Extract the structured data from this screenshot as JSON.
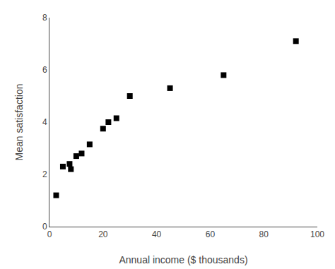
{
  "chart_data": {
    "type": "scatter",
    "x": [
      2.5,
      5,
      7.5,
      8,
      10,
      12,
      15,
      20,
      22,
      25,
      30,
      45,
      65,
      92
    ],
    "values": [
      1.2,
      2.3,
      2.4,
      2.2,
      2.7,
      2.8,
      3.15,
      3.75,
      4.0,
      4.15,
      5.0,
      5.3,
      5.8,
      7.1
    ],
    "xlabel": "Annual income ($ thousands)",
    "ylabel": "Mean satisfaction",
    "xlim": [
      0,
      100
    ],
    "ylim": [
      0,
      8
    ],
    "xticks": [
      0,
      20,
      40,
      60,
      80,
      100
    ],
    "yticks": [
      0,
      2,
      4,
      6,
      8
    ],
    "marker": "square",
    "color": "black",
    "grid": false
  }
}
